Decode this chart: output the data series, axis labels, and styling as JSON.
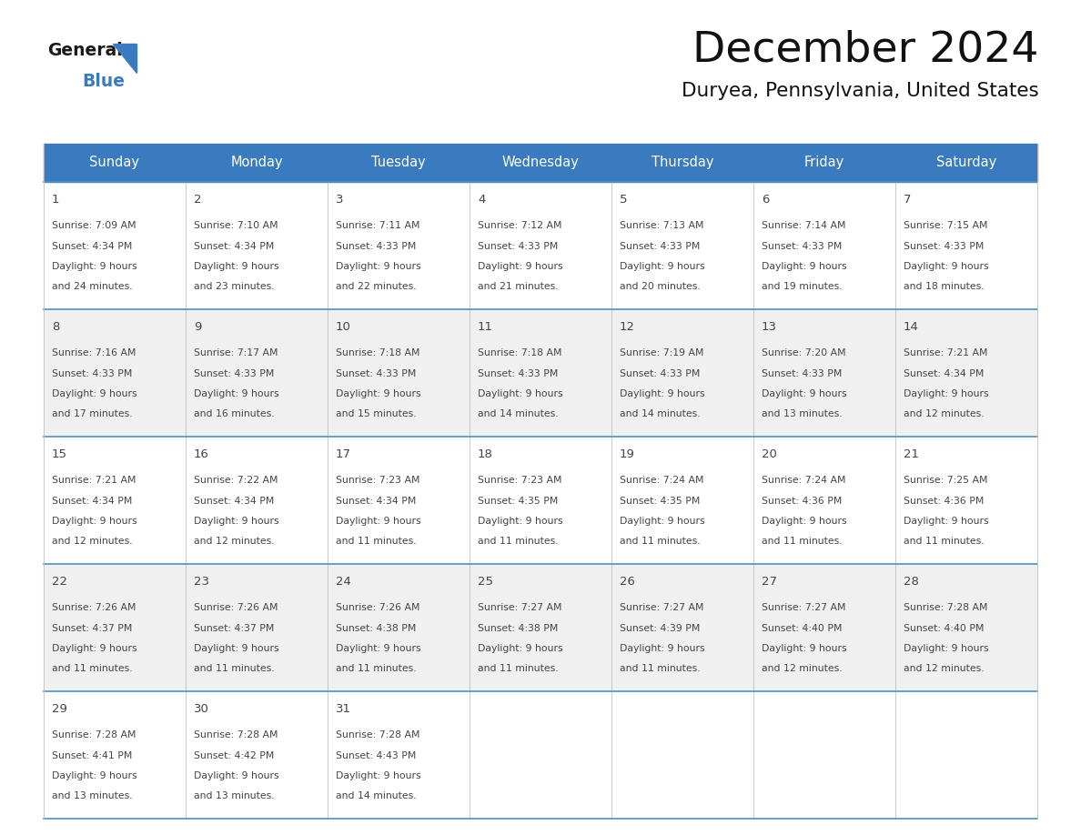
{
  "title": "December 2024",
  "subtitle": "Duryea, Pennsylvania, United States",
  "header_color": "#3a7abf",
  "header_text_color": "#ffffff",
  "cell_bg_even": "#ffffff",
  "cell_bg_odd": "#f0f0f0",
  "border_color": "#3a7abf",
  "row_border_color": "#4a90c4",
  "col_border_color": "#c0c0c0",
  "text_color": "#444444",
  "days_of_week": [
    "Sunday",
    "Monday",
    "Tuesday",
    "Wednesday",
    "Thursday",
    "Friday",
    "Saturday"
  ],
  "weeks": [
    [
      {
        "day": "1",
        "sunrise": "7:09 AM",
        "sunset": "4:34 PM",
        "daylight": "9 hours",
        "daylight2": "and 24 minutes."
      },
      {
        "day": "2",
        "sunrise": "7:10 AM",
        "sunset": "4:34 PM",
        "daylight": "9 hours",
        "daylight2": "and 23 minutes."
      },
      {
        "day": "3",
        "sunrise": "7:11 AM",
        "sunset": "4:33 PM",
        "daylight": "9 hours",
        "daylight2": "and 22 minutes."
      },
      {
        "day": "4",
        "sunrise": "7:12 AM",
        "sunset": "4:33 PM",
        "daylight": "9 hours",
        "daylight2": "and 21 minutes."
      },
      {
        "day": "5",
        "sunrise": "7:13 AM",
        "sunset": "4:33 PM",
        "daylight": "9 hours",
        "daylight2": "and 20 minutes."
      },
      {
        "day": "6",
        "sunrise": "7:14 AM",
        "sunset": "4:33 PM",
        "daylight": "9 hours",
        "daylight2": "and 19 minutes."
      },
      {
        "day": "7",
        "sunrise": "7:15 AM",
        "sunset": "4:33 PM",
        "daylight": "9 hours",
        "daylight2": "and 18 minutes."
      }
    ],
    [
      {
        "day": "8",
        "sunrise": "7:16 AM",
        "sunset": "4:33 PM",
        "daylight": "9 hours",
        "daylight2": "and 17 minutes."
      },
      {
        "day": "9",
        "sunrise": "7:17 AM",
        "sunset": "4:33 PM",
        "daylight": "9 hours",
        "daylight2": "and 16 minutes."
      },
      {
        "day": "10",
        "sunrise": "7:18 AM",
        "sunset": "4:33 PM",
        "daylight": "9 hours",
        "daylight2": "and 15 minutes."
      },
      {
        "day": "11",
        "sunrise": "7:18 AM",
        "sunset": "4:33 PM",
        "daylight": "9 hours",
        "daylight2": "and 14 minutes."
      },
      {
        "day": "12",
        "sunrise": "7:19 AM",
        "sunset": "4:33 PM",
        "daylight": "9 hours",
        "daylight2": "and 14 minutes."
      },
      {
        "day": "13",
        "sunrise": "7:20 AM",
        "sunset": "4:33 PM",
        "daylight": "9 hours",
        "daylight2": "and 13 minutes."
      },
      {
        "day": "14",
        "sunrise": "7:21 AM",
        "sunset": "4:34 PM",
        "daylight": "9 hours",
        "daylight2": "and 12 minutes."
      }
    ],
    [
      {
        "day": "15",
        "sunrise": "7:21 AM",
        "sunset": "4:34 PM",
        "daylight": "9 hours",
        "daylight2": "and 12 minutes."
      },
      {
        "day": "16",
        "sunrise": "7:22 AM",
        "sunset": "4:34 PM",
        "daylight": "9 hours",
        "daylight2": "and 12 minutes."
      },
      {
        "day": "17",
        "sunrise": "7:23 AM",
        "sunset": "4:34 PM",
        "daylight": "9 hours",
        "daylight2": "and 11 minutes."
      },
      {
        "day": "18",
        "sunrise": "7:23 AM",
        "sunset": "4:35 PM",
        "daylight": "9 hours",
        "daylight2": "and 11 minutes."
      },
      {
        "day": "19",
        "sunrise": "7:24 AM",
        "sunset": "4:35 PM",
        "daylight": "9 hours",
        "daylight2": "and 11 minutes."
      },
      {
        "day": "20",
        "sunrise": "7:24 AM",
        "sunset": "4:36 PM",
        "daylight": "9 hours",
        "daylight2": "and 11 minutes."
      },
      {
        "day": "21",
        "sunrise": "7:25 AM",
        "sunset": "4:36 PM",
        "daylight": "9 hours",
        "daylight2": "and 11 minutes."
      }
    ],
    [
      {
        "day": "22",
        "sunrise": "7:26 AM",
        "sunset": "4:37 PM",
        "daylight": "9 hours",
        "daylight2": "and 11 minutes."
      },
      {
        "day": "23",
        "sunrise": "7:26 AM",
        "sunset": "4:37 PM",
        "daylight": "9 hours",
        "daylight2": "and 11 minutes."
      },
      {
        "day": "24",
        "sunrise": "7:26 AM",
        "sunset": "4:38 PM",
        "daylight": "9 hours",
        "daylight2": "and 11 minutes."
      },
      {
        "day": "25",
        "sunrise": "7:27 AM",
        "sunset": "4:38 PM",
        "daylight": "9 hours",
        "daylight2": "and 11 minutes."
      },
      {
        "day": "26",
        "sunrise": "7:27 AM",
        "sunset": "4:39 PM",
        "daylight": "9 hours",
        "daylight2": "and 11 minutes."
      },
      {
        "day": "27",
        "sunrise": "7:27 AM",
        "sunset": "4:40 PM",
        "daylight": "9 hours",
        "daylight2": "and 12 minutes."
      },
      {
        "day": "28",
        "sunrise": "7:28 AM",
        "sunset": "4:40 PM",
        "daylight": "9 hours",
        "daylight2": "and 12 minutes."
      }
    ],
    [
      {
        "day": "29",
        "sunrise": "7:28 AM",
        "sunset": "4:41 PM",
        "daylight": "9 hours",
        "daylight2": "and 13 minutes."
      },
      {
        "day": "30",
        "sunrise": "7:28 AM",
        "sunset": "4:42 PM",
        "daylight": "9 hours",
        "daylight2": "and 13 minutes."
      },
      {
        "day": "31",
        "sunrise": "7:28 AM",
        "sunset": "4:43 PM",
        "daylight": "9 hours",
        "daylight2": "and 14 minutes."
      },
      null,
      null,
      null,
      null
    ]
  ]
}
